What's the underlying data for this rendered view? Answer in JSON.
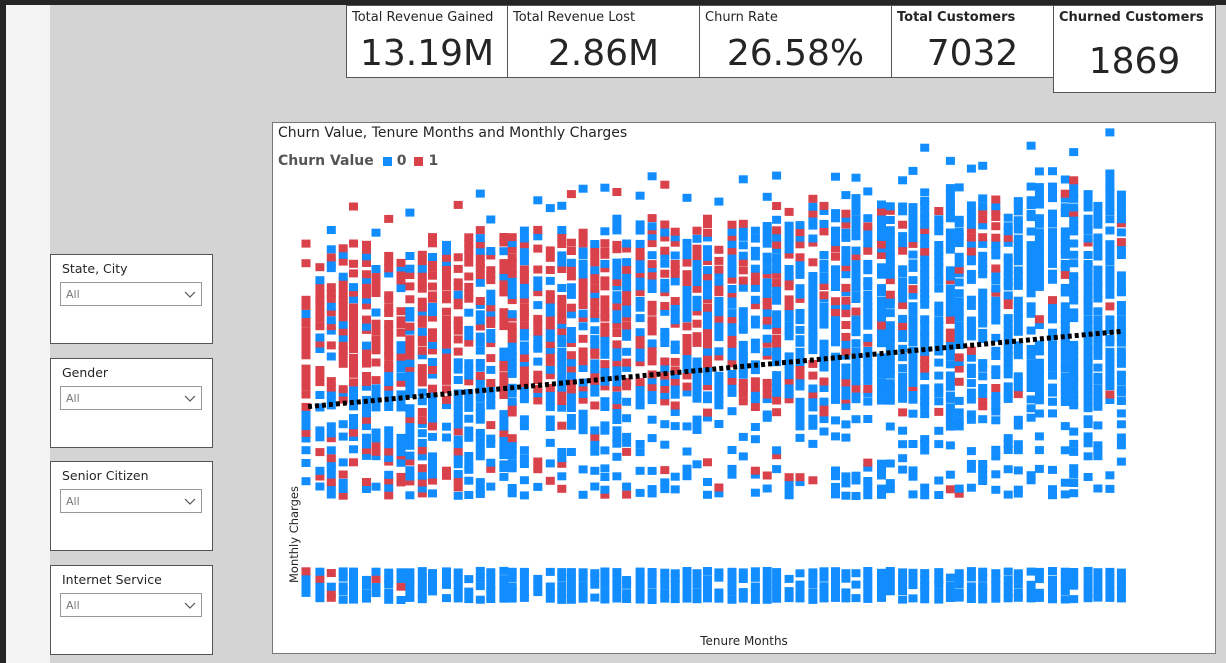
{
  "kpis": [
    {
      "title": "Total Revenue Gained",
      "value": "13.19M"
    },
    {
      "title": "Total Revenue Lost",
      "value": "2.86M"
    },
    {
      "title": "Churn Rate",
      "value": "26.58%"
    },
    {
      "title": "Total Customers",
      "value": "7032"
    },
    {
      "title": "Churned Customers",
      "value": "1869"
    }
  ],
  "slicers": [
    {
      "title": "State, City",
      "value": "All"
    },
    {
      "title": "Gender",
      "value": "All"
    },
    {
      "title": "Senior Citizen",
      "value": "All"
    },
    {
      "title": "Internet Service",
      "value": "All"
    }
  ],
  "chart": {
    "title": "Churn Value, Tenure Months and Monthly Charges",
    "legend_title": "Churn Value",
    "legend_items": [
      {
        "label": "0",
        "color": "#118DFF"
      },
      {
        "label": "1",
        "color": "#D9414B"
      }
    ],
    "xlabel": "Tenure Months",
    "ylabel": "Monthly Charges"
  },
  "chart_data": {
    "type": "scatter",
    "title": "Churn Value, Tenure Months and Monthly Charges",
    "xlabel": "Tenure Months",
    "ylabel": "Monthly Charges",
    "xlim": [
      1,
      72
    ],
    "ylim": [
      18,
      119
    ],
    "legend": "top-left",
    "grid": false,
    "series": [
      {
        "name": "0",
        "color": "#118DFF",
        "description_bands": [
          [
            18,
            27,
            0.9
          ],
          [
            45,
            119,
            0.75
          ]
        ]
      },
      {
        "name": "1",
        "color": "#D9414B",
        "concentration": "low tenure, high charges"
      }
    ],
    "trendline": {
      "x": [
        1,
        72
      ],
      "y": [
        65,
        83
      ],
      "style": "dotted",
      "color": "#000000"
    }
  }
}
